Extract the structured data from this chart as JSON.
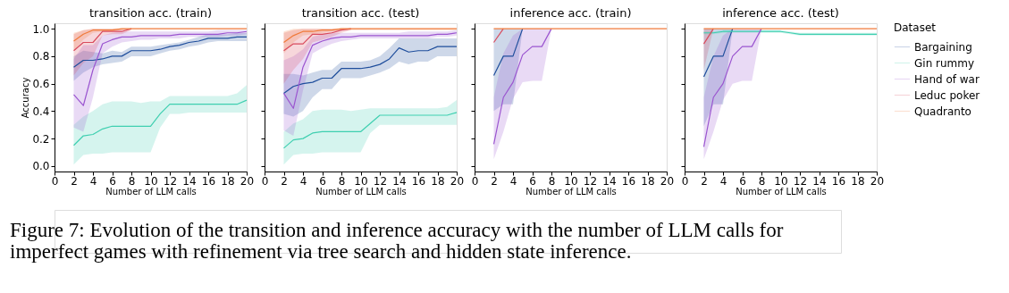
{
  "chart_data": [
    {
      "type": "line",
      "title": "transition acc. (train)",
      "xlabel": "Number of LLM calls",
      "ylabel": "Accuracy",
      "xlim": [
        0,
        20
      ],
      "xticks": [
        0,
        2,
        4,
        6,
        8,
        10,
        12,
        14,
        16,
        18,
        20
      ],
      "ylim": [
        -0.04,
        1.04
      ],
      "yticks": [
        {
          "value": 0,
          "label": "0.0"
        },
        {
          "value": 0.2,
          "label": "0.2"
        },
        {
          "value": 0.4,
          "label": "0.4"
        },
        {
          "value": 0.6,
          "label": "0.6"
        },
        {
          "value": 0.8,
          "label": "0.8"
        },
        {
          "value": 1,
          "label": "1.0"
        }
      ],
      "grid": false,
      "legend": "right",
      "legend_title": "Dataset",
      "x": [
        2,
        3,
        4,
        5,
        6,
        7,
        8,
        9,
        10,
        11,
        12,
        13,
        14,
        15,
        16,
        17,
        18,
        19,
        20
      ],
      "annotations": [
        "Figure 7: Evolution of the transition and inference accuracy with the number of LLM calls for imperfect games with refinement via tree search and hidden state inference."
      ],
      "series": [
        {
          "name": "Bargaining",
          "color": "#1f4e9c",
          "values": [
            0.72,
            0.77,
            0.77,
            0.78,
            0.8,
            0.8,
            0.84,
            0.84,
            0.84,
            0.85,
            0.87,
            0.88,
            0.9,
            0.91,
            0.93,
            0.93,
            0.93,
            0.94,
            0.94
          ],
          "lower": [
            0.62,
            0.68,
            0.72,
            0.74,
            0.75,
            0.76,
            0.8,
            0.8,
            0.8,
            0.82,
            0.84,
            0.85,
            0.87,
            0.88,
            0.9,
            0.91,
            0.91,
            0.91,
            0.91
          ],
          "upper": [
            0.8,
            0.84,
            0.83,
            0.82,
            0.84,
            0.83,
            0.87,
            0.87,
            0.87,
            0.88,
            0.89,
            0.9,
            0.92,
            0.94,
            0.96,
            0.96,
            0.96,
            0.97,
            0.97
          ]
        },
        {
          "name": "Gin rummy",
          "color": "#3fcfb0",
          "values": [
            0.15,
            0.22,
            0.23,
            0.27,
            0.29,
            0.29,
            0.29,
            0.29,
            0.29,
            0.38,
            0.45,
            0.45,
            0.45,
            0.45,
            0.45,
            0.45,
            0.45,
            0.45,
            0.48
          ],
          "lower": [
            0.01,
            0.08,
            0.09,
            0.09,
            0.1,
            0.1,
            0.1,
            0.1,
            0.1,
            0.28,
            0.38,
            0.38,
            0.39,
            0.39,
            0.39,
            0.39,
            0.39,
            0.39,
            0.39
          ],
          "upper": [
            0.3,
            0.36,
            0.4,
            0.45,
            0.47,
            0.47,
            0.47,
            0.46,
            0.47,
            0.47,
            0.51,
            0.51,
            0.51,
            0.51,
            0.51,
            0.51,
            0.51,
            0.53,
            0.59
          ]
        },
        {
          "name": "Hand of war",
          "color": "#9b55d0",
          "values": [
            0.52,
            0.44,
            0.7,
            0.89,
            0.92,
            0.94,
            0.94,
            0.95,
            0.95,
            0.95,
            0.95,
            0.96,
            0.96,
            0.96,
            0.96,
            0.96,
            0.97,
            0.97,
            0.98
          ],
          "lower": [
            0.28,
            0.25,
            0.5,
            0.82,
            0.87,
            0.9,
            0.91,
            0.92,
            0.92,
            0.93,
            0.93,
            0.93,
            0.94,
            0.94,
            0.94,
            0.94,
            0.95,
            0.95,
            0.96
          ],
          "upper": [
            0.78,
            0.88,
            0.88,
            0.95,
            0.97,
            0.98,
            0.98,
            0.98,
            0.98,
            0.98,
            0.98,
            0.98,
            0.98,
            0.98,
            0.98,
            0.99,
            0.99,
            0.99,
            0.99
          ]
        },
        {
          "name": "Leduc poker",
          "color": "#d94a5c",
          "values": [
            0.84,
            0.9,
            0.9,
            0.98,
            0.98,
            0.98,
            1,
            null,
            null,
            null,
            null,
            null,
            null,
            null,
            null,
            null,
            null,
            null,
            null
          ],
          "lower": [
            0.66,
            0.75,
            0.8,
            0.95,
            0.96,
            0.96,
            0.99,
            null,
            null,
            null,
            null,
            null,
            null,
            null,
            null,
            null,
            null,
            null,
            null
          ],
          "upper": [
            0.96,
            0.99,
            1,
            1,
            1,
            1,
            1,
            null,
            null,
            null,
            null,
            null,
            null,
            null,
            null,
            null,
            null,
            null,
            null
          ]
        },
        {
          "name": "Quadranto",
          "color": "#f07a3a",
          "values": [
            0.91,
            0.96,
            0.99,
            0.99,
            0.99,
            1,
            1,
            1,
            1,
            1,
            1,
            1,
            1,
            1,
            1,
            1,
            1,
            1,
            1
          ],
          "lower": [
            0.84,
            0.92,
            0.97,
            0.98,
            0.98,
            0.99,
            1,
            1,
            1,
            1,
            1,
            1,
            1,
            1,
            1,
            1,
            1,
            1,
            1
          ],
          "upper": [
            0.97,
            0.99,
            1,
            1,
            1,
            1,
            1,
            1,
            1,
            1,
            1,
            1,
            1,
            1,
            1,
            1,
            1,
            1,
            1
          ]
        }
      ]
    },
    {
      "type": "line",
      "title": "transition acc. (test)",
      "xlabel": "Number of LLM calls",
      "xlim": [
        0,
        20
      ],
      "xticks": [
        0,
        2,
        4,
        6,
        8,
        10,
        12,
        14,
        16,
        18,
        20
      ],
      "ylim": [
        -0.04,
        1.04
      ],
      "yticks": [
        0,
        0.2,
        0.4,
        0.6,
        0.8,
        1
      ],
      "tick_labels": "x",
      "grid": false,
      "x": [
        2,
        3,
        4,
        5,
        6,
        7,
        8,
        9,
        10,
        11,
        12,
        13,
        14,
        15,
        16,
        17,
        18,
        19,
        20
      ],
      "series": [
        {
          "name": "Bargaining",
          "color": "#1f4e9c",
          "values": [
            0.53,
            0.58,
            0.6,
            0.61,
            0.64,
            0.64,
            0.71,
            0.71,
            0.71,
            0.72,
            0.74,
            0.78,
            0.86,
            0.83,
            0.84,
            0.84,
            0.87,
            0.87,
            0.87
          ],
          "lower": [
            0.38,
            0.36,
            0.4,
            0.5,
            0.56,
            0.56,
            0.64,
            0.64,
            0.64,
            0.66,
            0.68,
            0.71,
            0.76,
            0.74,
            0.76,
            0.76,
            0.8,
            0.8,
            0.8
          ],
          "upper": [
            0.67,
            0.67,
            0.66,
            0.68,
            0.7,
            0.7,
            0.76,
            0.76,
            0.76,
            0.77,
            0.8,
            0.86,
            0.93,
            0.93,
            0.93,
            0.93,
            0.93,
            0.93,
            0.93
          ]
        },
        {
          "name": "Gin rummy",
          "color": "#3fcfb0",
          "values": [
            0.13,
            0.19,
            0.2,
            0.24,
            0.25,
            0.25,
            0.25,
            0.25,
            0.25,
            0.31,
            0.37,
            0.37,
            0.37,
            0.37,
            0.37,
            0.37,
            0.37,
            0.37,
            0.39
          ],
          "lower": [
            0.01,
            0.08,
            0.09,
            0.09,
            0.1,
            0.1,
            0.1,
            0.1,
            0.1,
            0.24,
            0.3,
            0.3,
            0.3,
            0.3,
            0.3,
            0.3,
            0.3,
            0.3,
            0.3
          ],
          "upper": [
            0.25,
            0.31,
            0.34,
            0.4,
            0.41,
            0.41,
            0.41,
            0.4,
            0.41,
            0.42,
            0.42,
            0.42,
            0.42,
            0.42,
            0.42,
            0.42,
            0.42,
            0.43,
            0.48
          ]
        },
        {
          "name": "Hand of war",
          "color": "#9b55d0",
          "values": [
            0.53,
            0.42,
            0.72,
            0.88,
            0.91,
            0.93,
            0.94,
            0.94,
            0.95,
            0.95,
            0.95,
            0.95,
            0.95,
            0.95,
            0.95,
            0.95,
            0.96,
            0.96,
            0.97
          ],
          "lower": [
            0.26,
            0.22,
            0.55,
            0.82,
            0.86,
            0.89,
            0.91,
            0.92,
            0.93,
            0.93,
            0.93,
            0.93,
            0.93,
            0.93,
            0.93,
            0.93,
            0.94,
            0.94,
            0.95
          ],
          "upper": [
            0.77,
            0.8,
            0.85,
            0.94,
            0.96,
            0.97,
            0.97,
            0.97,
            0.97,
            0.97,
            0.97,
            0.97,
            0.97,
            0.98,
            0.98,
            0.98,
            0.98,
            0.98,
            0.99
          ]
        },
        {
          "name": "Leduc poker",
          "color": "#d94a5c",
          "values": [
            0.84,
            0.89,
            0.89,
            0.96,
            0.96,
            0.97,
            0.99,
            1,
            null,
            null,
            null,
            null,
            null,
            null,
            null,
            null,
            null,
            null,
            null
          ],
          "lower": [
            0.6,
            0.7,
            0.78,
            0.9,
            0.92,
            0.94,
            0.97,
            0.99,
            null,
            null,
            null,
            null,
            null,
            null,
            null,
            null,
            null,
            null,
            null
          ],
          "upper": [
            0.97,
            0.99,
            1,
            1,
            1,
            1,
            1,
            1,
            null,
            null,
            null,
            null,
            null,
            null,
            null,
            null,
            null,
            null,
            null
          ]
        },
        {
          "name": "Quadranto",
          "color": "#f07a3a",
          "values": [
            0.9,
            0.95,
            0.98,
            0.98,
            0.99,
            0.99,
            1,
            1,
            1,
            1,
            1,
            1,
            1,
            1,
            1,
            1,
            1,
            1,
            1
          ],
          "lower": [
            0.82,
            0.9,
            0.95,
            0.96,
            0.97,
            0.98,
            0.99,
            0.99,
            0.99,
            0.99,
            0.99,
            0.99,
            0.99,
            0.99,
            0.99,
            0.99,
            0.99,
            0.99,
            0.99
          ],
          "upper": [
            0.98,
            1,
            1,
            1,
            1,
            1,
            1,
            1,
            1,
            1,
            1,
            1,
            1,
            1,
            1,
            1,
            1,
            1,
            1
          ]
        }
      ]
    },
    {
      "type": "line",
      "title": "inference acc. (train)",
      "xlabel": "Number of LLM calls",
      "xlim": [
        0,
        20
      ],
      "xticks": [
        0,
        2,
        4,
        6,
        8,
        10,
        12,
        14,
        16,
        18,
        20
      ],
      "ylim": [
        -0.04,
        1.04
      ],
      "yticks": [
        0,
        0.2,
        0.4,
        0.6,
        0.8,
        1
      ],
      "tick_labels": "x",
      "grid": false,
      "x": [
        2,
        3,
        4,
        5,
        6,
        7,
        8,
        9,
        10,
        11,
        12,
        13,
        14,
        15,
        16,
        17,
        18,
        19,
        20
      ],
      "series": [
        {
          "name": "Bargaining",
          "color": "#1f4e9c",
          "values": [
            0.66,
            0.8,
            0.8,
            1,
            null,
            null,
            null,
            null,
            null,
            null,
            null,
            null,
            null,
            null,
            null,
            null,
            null,
            null,
            null
          ],
          "lower": [
            0.4,
            0.45,
            0.45,
            1,
            null,
            null,
            null,
            null,
            null,
            null,
            null,
            null,
            null,
            null,
            null,
            null,
            null,
            null,
            null
          ],
          "upper": [
            1,
            1,
            1,
            1,
            null,
            null,
            null,
            null,
            null,
            null,
            null,
            null,
            null,
            null,
            null,
            null,
            null,
            null,
            null
          ]
        },
        {
          "name": "Hand of war",
          "color": "#9b55d0",
          "values": [
            0.16,
            0.5,
            0.61,
            0.81,
            0.87,
            0.87,
            1,
            null,
            null,
            null,
            null,
            null,
            null,
            null,
            null,
            null,
            null,
            null,
            null
          ],
          "lower": [
            0.05,
            0.25,
            0.49,
            0.61,
            0.62,
            0.62,
            1,
            null,
            null,
            null,
            null,
            null,
            null,
            null,
            null,
            null,
            null,
            null,
            null
          ],
          "upper": [
            0.5,
            0.82,
            0.95,
            1,
            1,
            1,
            1,
            null,
            null,
            null,
            null,
            null,
            null,
            null,
            null,
            null,
            null,
            null,
            null
          ]
        },
        {
          "name": "Leduc poker",
          "color": "#d94a5c",
          "values": [
            0.9,
            1,
            null,
            null,
            null,
            null,
            null,
            null,
            null,
            null,
            null,
            null,
            null,
            null,
            null,
            null,
            null,
            null,
            null
          ]
        },
        {
          "name": "Quadranto",
          "color": "#f07a3a",
          "values": [
            1,
            1,
            1,
            1,
            1,
            1,
            1,
            1,
            1,
            1,
            1,
            1,
            1,
            1,
            1,
            1,
            1,
            1,
            1
          ]
        }
      ]
    },
    {
      "type": "line",
      "title": "inference acc. (test)",
      "xlabel": "Number of LLM calls",
      "xlim": [
        0,
        20
      ],
      "xticks": [
        0,
        2,
        4,
        6,
        8,
        10,
        12,
        14,
        16,
        18,
        20
      ],
      "ylim": [
        -0.04,
        1.04
      ],
      "yticks": [
        0,
        0.2,
        0.4,
        0.6,
        0.8,
        1
      ],
      "tick_labels": "x",
      "grid": false,
      "x": [
        2,
        3,
        4,
        5,
        6,
        7,
        8,
        9,
        10,
        11,
        12,
        13,
        14,
        15,
        16,
        17,
        18,
        19,
        20
      ],
      "series": [
        {
          "name": "Bargaining",
          "color": "#1f4e9c",
          "values": [
            0.65,
            0.8,
            0.8,
            1,
            null,
            null,
            null,
            null,
            null,
            null,
            null,
            null,
            null,
            null,
            null,
            null,
            null,
            null,
            null
          ],
          "lower": [
            0.29,
            0.45,
            0.45,
            1,
            null,
            null,
            null,
            null,
            null,
            null,
            null,
            null,
            null,
            null,
            null,
            null,
            null,
            null,
            null
          ],
          "upper": [
            1,
            1,
            1,
            1,
            null,
            null,
            null,
            null,
            null,
            null,
            null,
            null,
            null,
            null,
            null,
            null,
            null,
            null,
            null
          ]
        },
        {
          "name": "Gin rummy",
          "color": "#3fcfb0",
          "values": [
            0.97,
            0.97,
            0.98,
            0.98,
            0.98,
            0.98,
            0.98,
            0.98,
            0.98,
            0.97,
            0.96,
            0.96,
            0.96,
            0.96,
            0.96,
            0.96,
            0.96,
            0.96,
            0.96
          ],
          "lower": [
            0.96,
            0.96,
            0.97,
            0.97,
            0.97,
            0.97,
            0.97,
            0.97,
            0.97,
            0.96,
            0.95,
            0.95,
            0.95,
            0.95,
            0.95,
            0.95,
            0.95,
            0.95,
            0.95
          ],
          "upper": [
            0.98,
            0.98,
            0.99,
            0.99,
            0.99,
            0.99,
            0.99,
            0.99,
            0.99,
            0.98,
            0.97,
            0.97,
            0.97,
            0.97,
            0.97,
            0.97,
            0.97,
            0.97,
            0.97
          ]
        },
        {
          "name": "Hand of war",
          "color": "#9b55d0",
          "values": [
            0.14,
            0.5,
            0.6,
            0.8,
            0.87,
            0.87,
            1,
            null,
            null,
            null,
            null,
            null,
            null,
            null,
            null,
            null,
            null,
            null,
            null
          ],
          "lower": [
            0.05,
            0.25,
            0.48,
            0.6,
            0.62,
            0.62,
            1,
            null,
            null,
            null,
            null,
            null,
            null,
            null,
            null,
            null,
            null,
            null,
            null
          ],
          "upper": [
            0.5,
            0.8,
            0.95,
            1,
            1,
            1,
            1,
            null,
            null,
            null,
            null,
            null,
            null,
            null,
            null,
            null,
            null,
            null,
            null
          ]
        },
        {
          "name": "Leduc poker",
          "color": "#d94a5c",
          "values": [
            0.89,
            1,
            null,
            null,
            null,
            null,
            null,
            null,
            null,
            null,
            null,
            null,
            null,
            null,
            null,
            null,
            null,
            null,
            null
          ],
          "lower": [
            0.7,
            1,
            null,
            null,
            null,
            null,
            null,
            null,
            null,
            null,
            null,
            null,
            null,
            null,
            null,
            null,
            null,
            null,
            null
          ],
          "upper": [
            1,
            1,
            null,
            null,
            null,
            null,
            null,
            null,
            null,
            null,
            null,
            null,
            null,
            null,
            null,
            null,
            null,
            null,
            null
          ]
        },
        {
          "name": "Quadranto",
          "color": "#f07a3a",
          "values": [
            1,
            1,
            1,
            1,
            1,
            1,
            1,
            1,
            1,
            1,
            1,
            1,
            1,
            1,
            1,
            1,
            1,
            1,
            1
          ]
        }
      ]
    }
  ]
}
